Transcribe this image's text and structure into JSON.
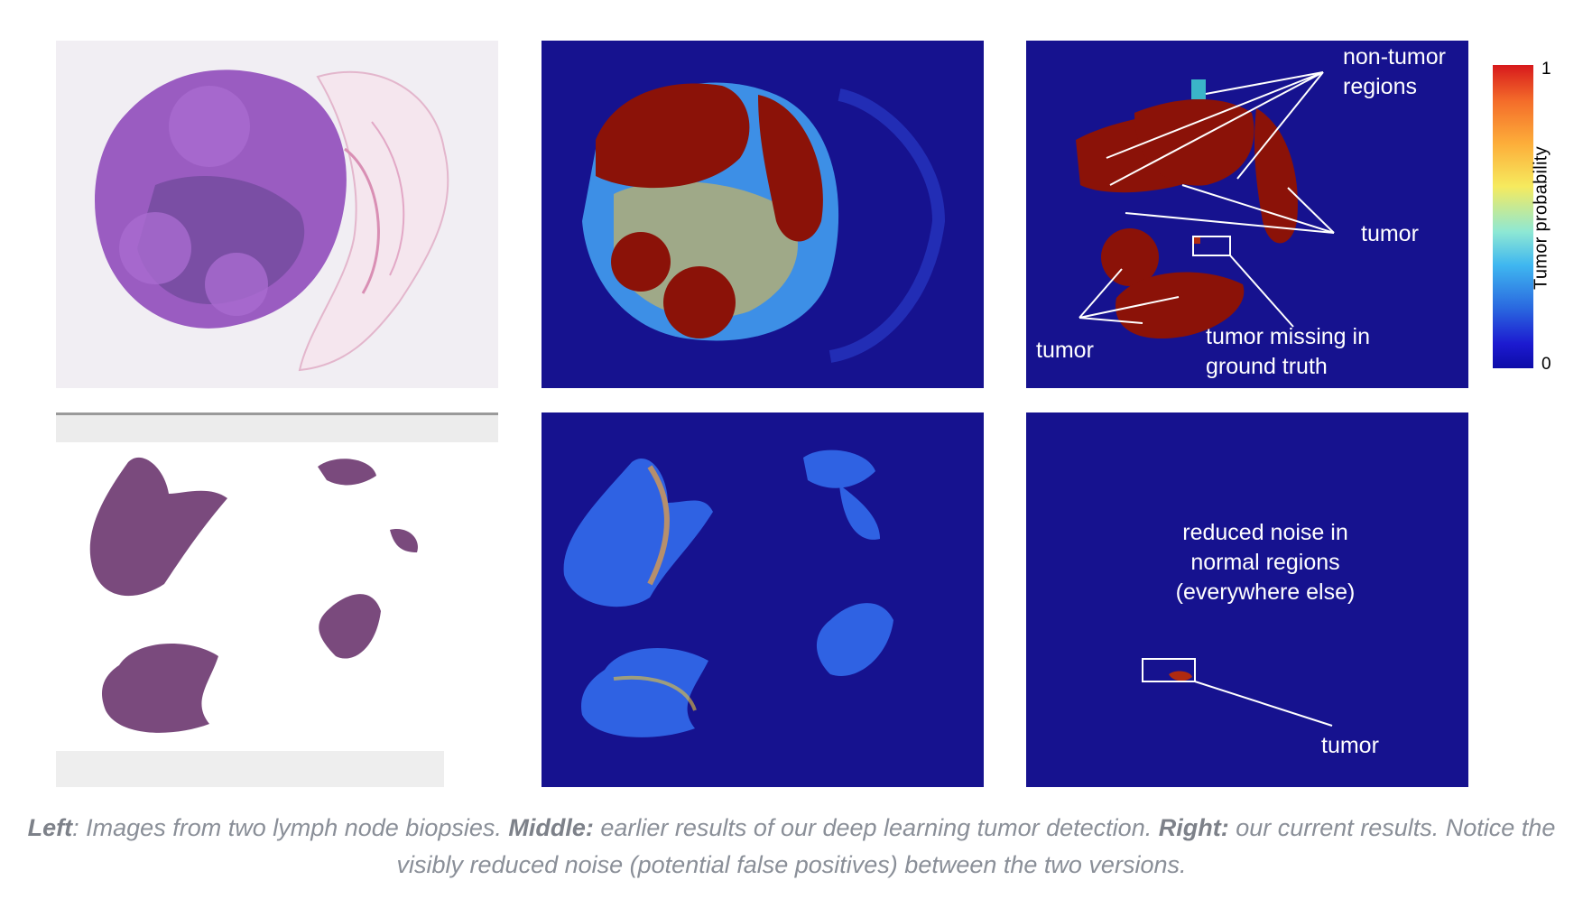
{
  "figure": {
    "annotations": {
      "non_tumor_regions": "non-tumor\nregions",
      "tumor_right": "tumor",
      "tumor_left": "tumor",
      "tumor_missing": "tumor missing in\nground truth",
      "reduced_noise": "reduced noise in\nnormal regions\n(everywhere else)",
      "tumor_bottom": "tumor"
    },
    "colorbar": {
      "title": "Tumor probability",
      "max_label": "1",
      "min_label": "0",
      "colors": [
        "#d7191c",
        "#fdae3a",
        "#f6ea5e",
        "#8ee8d4",
        "#2a69e0",
        "#0d0ca8"
      ]
    },
    "colors": {
      "heatmap_background": "#16128f",
      "tumor_high": "#8b1208",
      "he_stain": "#9a5cc1",
      "he_stain_dark": "#7a4a7d"
    }
  },
  "caption": {
    "left_label": "Left",
    "left_text": ": Images from two lymph node biopsies. ",
    "middle_label": "Middle:",
    "middle_text": " earlier results of our deep learning tumor detection. ",
    "right_label": "Right:",
    "right_text": " our current results. Notice the visibly reduced noise (potential false positives) between the two versions."
  }
}
